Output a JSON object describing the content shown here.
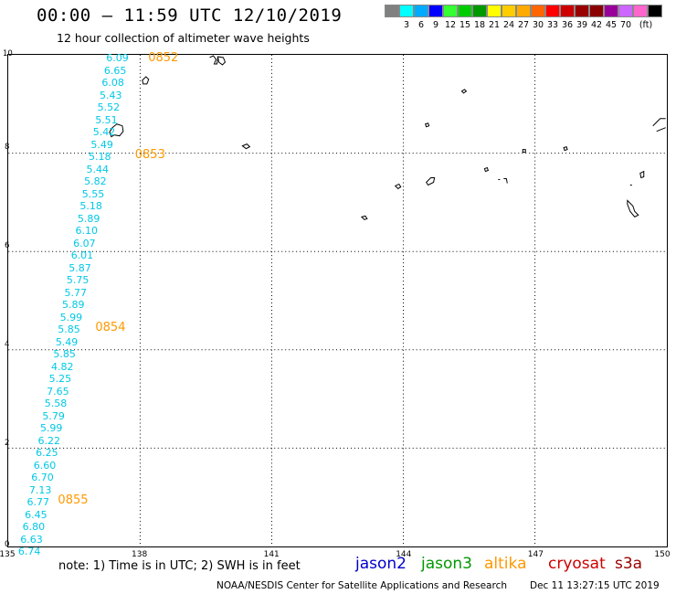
{
  "title": "00:00 – 11:59 UTC 12/10/2019",
  "subtitle": "12 hour collection of altimeter wave heights",
  "colorbar": {
    "colors": [
      "#808080",
      "#00ffff",
      "#00aaff",
      "#0000ff",
      "#33ff33",
      "#00cc00",
      "#009900",
      "#ffff00",
      "#ffcc00",
      "#ffaa00",
      "#ff6600",
      "#ff0000",
      "#cc0000",
      "#990000",
      "#8b0000",
      "#990099",
      "#cc66ff",
      "#ff66cc",
      "#000000"
    ],
    "labels": [
      "3",
      "6",
      "9",
      "12",
      "15",
      "18",
      "21",
      "24",
      "27",
      "30",
      "33",
      "36",
      "39",
      "42",
      "45",
      "70"
    ],
    "unit": "(ft)"
  },
  "map": {
    "lon_range": [
      135,
      150
    ],
    "lat_range": [
      0,
      10
    ],
    "x_ticks": [
      "135",
      "138",
      "141",
      "144",
      "147",
      "150"
    ],
    "y_ticks": [
      "10",
      "8",
      "6",
      "4",
      "2",
      "0"
    ]
  },
  "observations": [
    {
      "lat": 9.9,
      "lon": 137.5,
      "swh": "6.09"
    },
    {
      "lat": 9.65,
      "lon": 137.45,
      "swh": "6.65"
    },
    {
      "lat": 9.4,
      "lon": 137.4,
      "swh": "6.08"
    },
    {
      "lat": 9.15,
      "lon": 137.35,
      "swh": "5.43"
    },
    {
      "lat": 8.9,
      "lon": 137.3,
      "swh": "5.52"
    },
    {
      "lat": 8.65,
      "lon": 137.25,
      "swh": "5.51"
    },
    {
      "lat": 8.4,
      "lon": 137.2,
      "swh": "5.42"
    },
    {
      "lat": 8.15,
      "lon": 137.15,
      "swh": "5.49"
    },
    {
      "lat": 7.9,
      "lon": 137.1,
      "swh": "5.18"
    },
    {
      "lat": 7.65,
      "lon": 137.05,
      "swh": "5.44"
    },
    {
      "lat": 7.4,
      "lon": 137.0,
      "swh": "5.82"
    },
    {
      "lat": 7.15,
      "lon": 136.95,
      "swh": "5.55"
    },
    {
      "lat": 6.9,
      "lon": 136.9,
      "swh": "5.18"
    },
    {
      "lat": 6.65,
      "lon": 136.85,
      "swh": "5.89"
    },
    {
      "lat": 6.4,
      "lon": 136.8,
      "swh": "6.10"
    },
    {
      "lat": 6.15,
      "lon": 136.75,
      "swh": "6.07"
    },
    {
      "lat": 5.9,
      "lon": 136.7,
      "swh": "6.01"
    },
    {
      "lat": 5.65,
      "lon": 136.65,
      "swh": "5.87"
    },
    {
      "lat": 5.4,
      "lon": 136.6,
      "swh": "5.75"
    },
    {
      "lat": 5.15,
      "lon": 136.55,
      "swh": "5.77"
    },
    {
      "lat": 4.9,
      "lon": 136.5,
      "swh": "5.89"
    },
    {
      "lat": 4.65,
      "lon": 136.45,
      "swh": "5.99"
    },
    {
      "lat": 4.4,
      "lon": 136.4,
      "swh": "5.85"
    },
    {
      "lat": 4.15,
      "lon": 136.35,
      "swh": "5.49"
    },
    {
      "lat": 3.9,
      "lon": 136.3,
      "swh": "5.85"
    },
    {
      "lat": 3.65,
      "lon": 136.25,
      "swh": "4.82"
    },
    {
      "lat": 3.4,
      "lon": 136.2,
      "swh": "5.25"
    },
    {
      "lat": 3.15,
      "lon": 136.15,
      "swh": "7.65"
    },
    {
      "lat": 2.9,
      "lon": 136.1,
      "swh": "5.58"
    },
    {
      "lat": 2.65,
      "lon": 136.05,
      "swh": "5.79"
    },
    {
      "lat": 2.4,
      "lon": 136.0,
      "swh": "5.99"
    },
    {
      "lat": 2.15,
      "lon": 135.95,
      "swh": "6.22"
    },
    {
      "lat": 1.9,
      "lon": 135.9,
      "swh": "6.25"
    },
    {
      "lat": 1.65,
      "lon": 135.85,
      "swh": "6.60"
    },
    {
      "lat": 1.4,
      "lon": 135.8,
      "swh": "6.70"
    },
    {
      "lat": 1.15,
      "lon": 135.75,
      "swh": "7.13"
    },
    {
      "lat": 0.9,
      "lon": 135.7,
      "swh": "6.77"
    },
    {
      "lat": 0.65,
      "lon": 135.65,
      "swh": "6.45"
    },
    {
      "lat": 0.4,
      "lon": 135.6,
      "swh": "6.80"
    },
    {
      "lat": 0.15,
      "lon": 135.55,
      "swh": "6.63"
    },
    {
      "lat": -0.1,
      "lon": 135.5,
      "swh": "6.74"
    }
  ],
  "time_labels": [
    {
      "text": "0852",
      "lat": 9.9,
      "lon": 138.2
    },
    {
      "text": "0853",
      "lat": 7.95,
      "lon": 137.9
    },
    {
      "text": "0854",
      "lat": 4.45,
      "lon": 137.0
    },
    {
      "text": "0855",
      "lat": 0.95,
      "lon": 136.15
    }
  ],
  "note": "note:  1) Time is in UTC;  2) SWH is in feet",
  "satellites": [
    {
      "name": "jason2",
      "color": "#0000cc"
    },
    {
      "name": "jason3",
      "color": "#009900"
    },
    {
      "name": "altika",
      "color": "#ff9900"
    },
    {
      "name": "cryosat",
      "color": "#cc0000"
    },
    {
      "name": "s3a",
      "color": "#990000"
    }
  ],
  "footer": "NOAA/NESDIS Center for Satellite Applications and Research",
  "footer_time": "Dec 11 13:27:15 UTC 2019"
}
